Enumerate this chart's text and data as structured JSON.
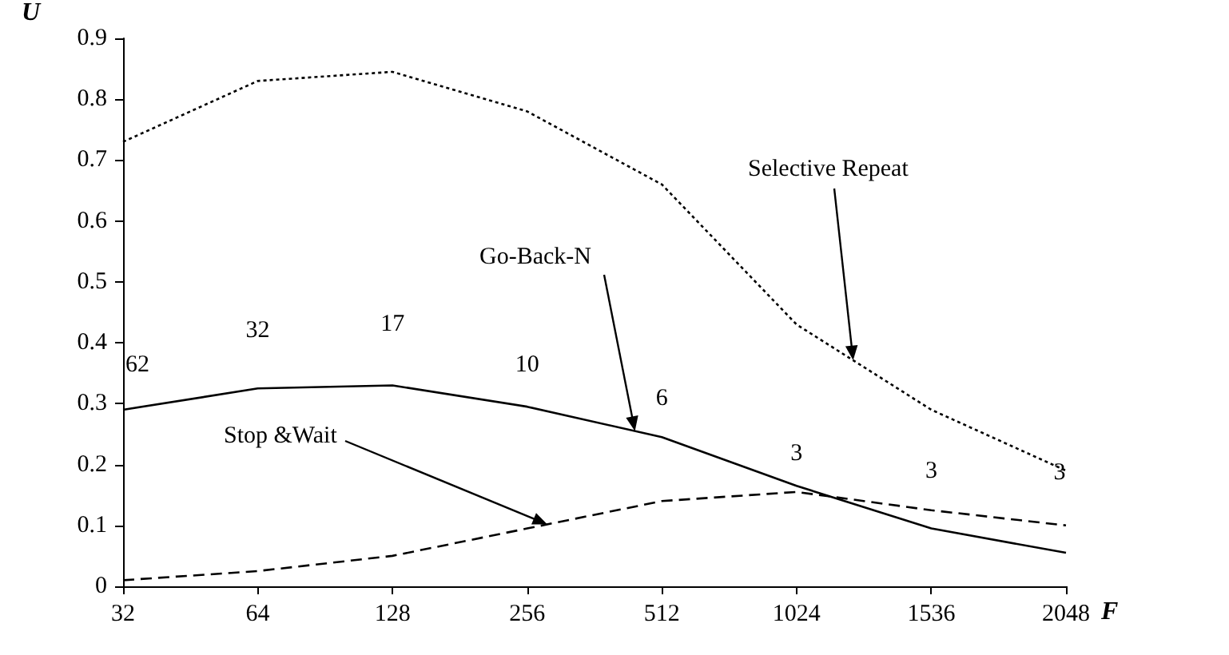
{
  "chart_data": {
    "type": "line",
    "xlabel": "F",
    "ylabel": "U",
    "categories": [
      "32",
      "64",
      "128",
      "256",
      "512",
      "1024",
      "1536",
      "2048"
    ],
    "series": [
      {
        "name": "Selective Repeat",
        "color": "#000000",
        "line_style": "dotted",
        "values": [
          0.73,
          0.83,
          0.845,
          0.78,
          0.66,
          0.43,
          0.29,
          0.19
        ]
      },
      {
        "name": "Go-Back-N",
        "color": "#000000",
        "line_style": "solid",
        "values": [
          0.29,
          0.325,
          0.33,
          0.295,
          0.245,
          0.165,
          0.095,
          0.055
        ]
      },
      {
        "name": "Stop &Wait",
        "color": "#000000",
        "line_style": "dashed",
        "values": [
          0.01,
          0.025,
          0.05,
          0.095,
          0.14,
          0.155,
          0.125,
          0.1
        ]
      }
    ],
    "ylim": [
      0,
      0.9
    ],
    "yticks": [
      0,
      0.1,
      0.2,
      0.3,
      0.4,
      0.5,
      0.6,
      0.7,
      0.8,
      0.9
    ],
    "grid": false,
    "legend": false,
    "marker": "none",
    "annotations": [
      {
        "text": "62",
        "x": "32",
        "y": 0.29
      },
      {
        "text": "32",
        "x": "64",
        "y": 0.325
      },
      {
        "text": "17",
        "x": "128",
        "y": 0.33
      },
      {
        "text": "10",
        "x": "256",
        "y": 0.295
      },
      {
        "text": "6",
        "x": "512",
        "y": 0.245
      },
      {
        "text": "3",
        "x": "1024",
        "y": 0.165
      },
      {
        "text": "3",
        "x": "1536",
        "y": 0.095
      },
      {
        "text": "3",
        "x": "2048",
        "y": 0.055
      }
    ]
  }
}
